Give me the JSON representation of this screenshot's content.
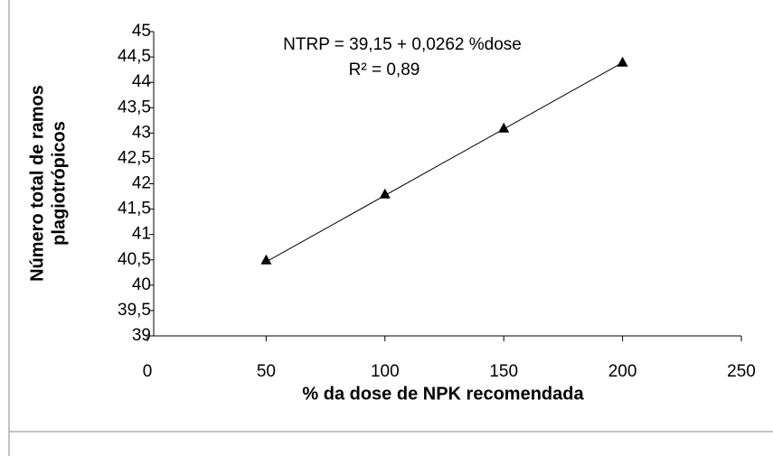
{
  "chart_data": {
    "type": "scatter",
    "xlabel": "% da dose de NPK recomendada",
    "ylabel": [
      "Número total de ramos",
      "plagiotrópicos"
    ],
    "annotations": [
      "NTRP = 39,15 + 0,0262 %dose",
      "R² = 0,89"
    ],
    "trendline": {
      "intercept": 39.15,
      "slope": 0.0262
    },
    "series": [
      {
        "color": "#000000",
        "x": [
          50,
          100,
          150,
          200
        ],
        "values": [
          40.5,
          41.8,
          43.1,
          44.4
        ]
      }
    ],
    "xlim": [
      0,
      250
    ],
    "xticks": [
      0,
      50,
      100,
      150,
      200,
      250
    ],
    "ylim": [
      39,
      45
    ],
    "yticks": [
      39,
      {
        "value": 39.5,
        "label": "39,5"
      },
      40,
      {
        "value": 40.5,
        "label": "40,5"
      },
      41,
      {
        "value": 41.5,
        "label": "41,5"
      },
      42,
      {
        "value": 42.5,
        "label": "42,5"
      },
      43,
      {
        "value": 43.5,
        "label": "43,5"
      },
      44,
      {
        "value": 44.5,
        "label": "44,5"
      },
      45
    ]
  }
}
